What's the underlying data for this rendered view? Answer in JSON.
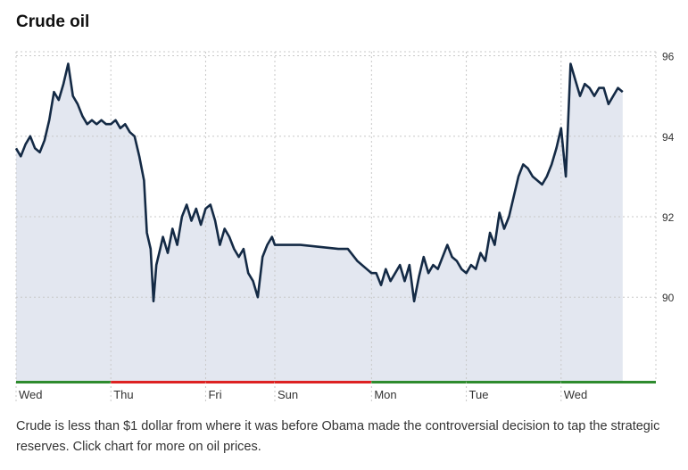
{
  "title": "Crude oil",
  "caption": "Crude is less than $1 dollar from where it was before Obama made the controversial decision to tap the strategic reserves. Click chart for more on oil prices.",
  "colors": {
    "line": "#142a45",
    "fill": "#e3e7f0",
    "grid": "#c8c8c8",
    "up": "#2e8b2e",
    "down": "#dd2222",
    "axis_text": "#333333"
  },
  "chart_data": {
    "type": "area",
    "title": "Crude oil",
    "xlabel": "",
    "ylabel": "",
    "ylim": [
      87.9,
      96.1
    ],
    "yticks": [
      90,
      92,
      94,
      96
    ],
    "y_axis_position": "right",
    "grid": true,
    "x_tick_labels": [
      "Wed",
      "Thu",
      "Fri",
      "Sun",
      "Mon",
      "Tue",
      "Wed"
    ],
    "sessions": [
      {
        "label": "Wed",
        "start": 0,
        "end": 1,
        "change": "up"
      },
      {
        "label": "Thu",
        "start": 1,
        "end": 2,
        "change": "down"
      },
      {
        "label": "Fri",
        "start": 2,
        "end": 2.73,
        "change": "down"
      },
      {
        "label": "Sun",
        "start": 2.73,
        "end": 3.75,
        "change": "down"
      },
      {
        "label": "Mon",
        "start": 3.75,
        "end": 4.75,
        "change": "up"
      },
      {
        "label": "Tue",
        "start": 4.75,
        "end": 5.75,
        "change": "up"
      },
      {
        "label": "Wed",
        "start": 5.75,
        "end": 6.75,
        "change": "up"
      }
    ],
    "series": [
      {
        "values": [
          [
            0.0,
            93.7
          ],
          [
            0.05,
            93.5
          ],
          [
            0.1,
            93.8
          ],
          [
            0.15,
            94.0
          ],
          [
            0.2,
            93.7
          ],
          [
            0.25,
            93.6
          ],
          [
            0.3,
            93.9
          ],
          [
            0.35,
            94.4
          ],
          [
            0.4,
            95.1
          ],
          [
            0.45,
            94.9
          ],
          [
            0.5,
            95.3
          ],
          [
            0.55,
            95.8
          ],
          [
            0.6,
            95.0
          ],
          [
            0.65,
            94.8
          ],
          [
            0.7,
            94.5
          ],
          [
            0.75,
            94.3
          ],
          [
            0.8,
            94.4
          ],
          [
            0.85,
            94.3
          ],
          [
            0.9,
            94.4
          ],
          [
            0.95,
            94.3
          ],
          [
            1.0,
            94.3
          ],
          [
            1.05,
            94.4
          ],
          [
            1.1,
            94.2
          ],
          [
            1.15,
            94.3
          ],
          [
            1.2,
            94.1
          ],
          [
            1.25,
            94.0
          ],
          [
            1.3,
            93.5
          ],
          [
            1.35,
            92.9
          ],
          [
            1.38,
            91.6
          ],
          [
            1.42,
            91.2
          ],
          [
            1.45,
            89.9
          ],
          [
            1.48,
            90.8
          ],
          [
            1.52,
            91.2
          ],
          [
            1.55,
            91.5
          ],
          [
            1.6,
            91.1
          ],
          [
            1.65,
            91.7
          ],
          [
            1.7,
            91.3
          ],
          [
            1.75,
            92.0
          ],
          [
            1.8,
            92.3
          ],
          [
            1.85,
            91.9
          ],
          [
            1.9,
            92.2
          ],
          [
            1.95,
            91.8
          ],
          [
            2.0,
            92.2
          ],
          [
            2.05,
            92.3
          ],
          [
            2.1,
            91.9
          ],
          [
            2.15,
            91.3
          ],
          [
            2.2,
            91.7
          ],
          [
            2.25,
            91.5
          ],
          [
            2.3,
            91.2
          ],
          [
            2.35,
            91.0
          ],
          [
            2.4,
            91.2
          ],
          [
            2.45,
            90.6
          ],
          [
            2.5,
            90.4
          ],
          [
            2.55,
            90.0
          ],
          [
            2.6,
            91.0
          ],
          [
            2.65,
            91.3
          ],
          [
            2.7,
            91.5
          ],
          [
            2.73,
            91.3
          ],
          [
            2.8,
            91.3
          ],
          [
            3.0,
            91.3
          ],
          [
            3.2,
            91.25
          ],
          [
            3.4,
            91.2
          ],
          [
            3.5,
            91.2
          ],
          [
            3.6,
            90.9
          ],
          [
            3.7,
            90.7
          ],
          [
            3.75,
            90.6
          ],
          [
            3.8,
            90.6
          ],
          [
            3.85,
            90.3
          ],
          [
            3.9,
            90.7
          ],
          [
            3.95,
            90.4
          ],
          [
            4.0,
            90.6
          ],
          [
            4.05,
            90.8
          ],
          [
            4.1,
            90.4
          ],
          [
            4.15,
            90.8
          ],
          [
            4.2,
            89.9
          ],
          [
            4.25,
            90.5
          ],
          [
            4.3,
            91.0
          ],
          [
            4.35,
            90.6
          ],
          [
            4.4,
            90.8
          ],
          [
            4.45,
            90.7
          ],
          [
            4.5,
            91.0
          ],
          [
            4.55,
            91.3
          ],
          [
            4.6,
            91.0
          ],
          [
            4.65,
            90.9
          ],
          [
            4.7,
            90.7
          ],
          [
            4.75,
            90.6
          ],
          [
            4.8,
            90.8
          ],
          [
            4.85,
            90.7
          ],
          [
            4.9,
            91.1
          ],
          [
            4.95,
            90.9
          ],
          [
            5.0,
            91.6
          ],
          [
            5.05,
            91.3
          ],
          [
            5.1,
            92.1
          ],
          [
            5.15,
            91.7
          ],
          [
            5.2,
            92.0
          ],
          [
            5.25,
            92.5
          ],
          [
            5.3,
            93.0
          ],
          [
            5.35,
            93.3
          ],
          [
            5.4,
            93.2
          ],
          [
            5.45,
            93.0
          ],
          [
            5.5,
            92.9
          ],
          [
            5.55,
            92.8
          ],
          [
            5.6,
            93.0
          ],
          [
            5.65,
            93.3
          ],
          [
            5.7,
            93.7
          ],
          [
            5.75,
            94.2
          ],
          [
            5.8,
            93.0
          ],
          [
            5.85,
            95.8
          ],
          [
            5.9,
            95.4
          ],
          [
            5.95,
            95.0
          ],
          [
            6.0,
            95.3
          ],
          [
            6.05,
            95.2
          ],
          [
            6.1,
            95.0
          ],
          [
            6.15,
            95.2
          ],
          [
            6.2,
            95.2
          ],
          [
            6.25,
            94.8
          ],
          [
            6.3,
            95.0
          ],
          [
            6.35,
            95.2
          ],
          [
            6.4,
            95.1
          ]
        ]
      }
    ]
  }
}
